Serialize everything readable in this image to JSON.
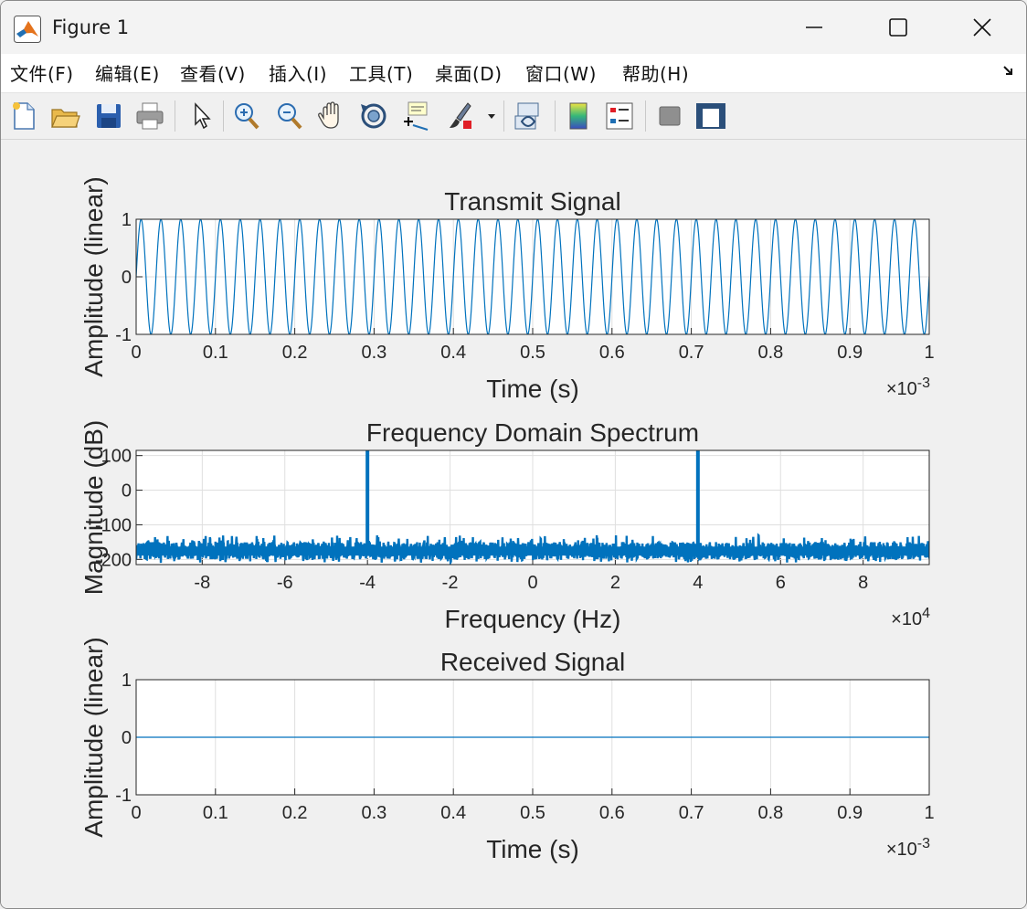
{
  "window": {
    "title": "Figure 1"
  },
  "menu": [
    "文件(F)",
    "编辑(E)",
    "查看(V)",
    "插入(I)",
    "工具(T)",
    "桌面(D)",
    "窗口(W)",
    "帮助(H)"
  ],
  "toolbar": [
    "new-figure-icon",
    "open-file-icon",
    "save-icon",
    "print-icon",
    "pointer-icon",
    "zoom-in-icon",
    "zoom-out-icon",
    "pan-icon",
    "rotate-3d-icon",
    "data-cursor-icon",
    "brush-icon",
    "brush-dropdown-icon",
    "link-plot-icon",
    "colorbar-icon",
    "legend-icon",
    "hide-plot-tools-icon",
    "show-plot-tools-icon"
  ],
  "chart_data": [
    {
      "type": "line",
      "title": "Transmit Signal",
      "xlabel": "Time (s)",
      "ylabel": "Amplitude (linear)",
      "xlim": [
        0,
        0.001
      ],
      "ylim": [
        -1,
        1
      ],
      "x_exponent": "×10-3",
      "xticks": [
        "0",
        "0.1",
        "0.2",
        "0.3",
        "0.4",
        "0.5",
        "0.6",
        "0.7",
        "0.8",
        "0.9",
        "1"
      ],
      "yticks": [
        "-1",
        "0",
        "1"
      ],
      "signal": {
        "shape": "sine",
        "amplitude": 1,
        "frequency_hz": 40000,
        "duration_s": 0.001
      },
      "grid": true,
      "color": "#0072bd"
    },
    {
      "type": "line",
      "title": "Frequency Domain Spectrum",
      "xlabel": "Frequency (Hz)",
      "ylabel": "Magnitude (dB)",
      "xlim": [
        -96000,
        96000
      ],
      "ylim": [
        -215,
        115
      ],
      "x_exponent": "×104",
      "xticks": [
        "-8",
        "-6",
        "-4",
        "-2",
        "0",
        "2",
        "4",
        "6",
        "8"
      ],
      "yticks": [
        "-200",
        "-100",
        "0",
        "100"
      ],
      "peaks": [
        {
          "x": -40000,
          "y": 115
        },
        {
          "x": 40000,
          "y": 115
        }
      ],
      "noise_floor": {
        "center": -175,
        "range": [
          -210,
          -130
        ]
      },
      "grid": true,
      "color": "#0072bd"
    },
    {
      "type": "line",
      "title": "Received Signal",
      "xlabel": "Time (s)",
      "ylabel": "Amplitude (linear)",
      "xlim": [
        0,
        0.001
      ],
      "ylim": [
        -1,
        1
      ],
      "x_exponent": "×10-3",
      "xticks": [
        "0",
        "0.1",
        "0.2",
        "0.3",
        "0.4",
        "0.5",
        "0.6",
        "0.7",
        "0.8",
        "0.9",
        "1"
      ],
      "yticks": [
        "-1",
        "0",
        "1"
      ],
      "signal": {
        "shape": "constant",
        "value": 0
      },
      "grid": true,
      "color": "#0072bd"
    }
  ]
}
